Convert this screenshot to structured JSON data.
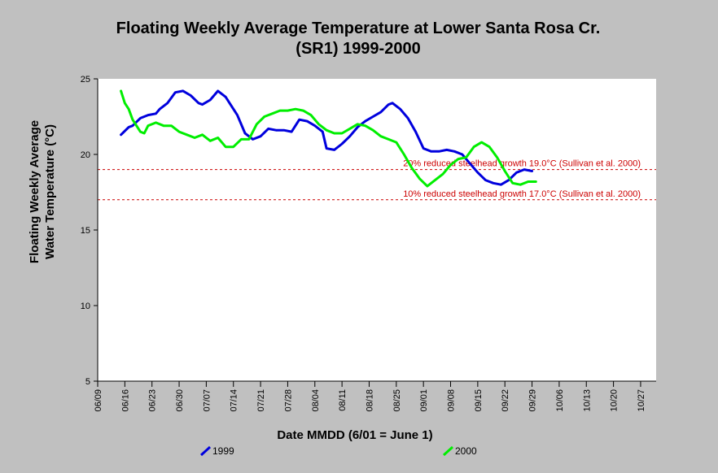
{
  "chart_data": {
    "type": "line",
    "title": "Floating Weekly Average Temperature at Lower Santa Rosa Cr.",
    "subtitle": "(SR1) 1999-2000",
    "xlabel": "Date MMDD (6/01 = June 1)",
    "ylabel_line1": "Floating Weekly Average",
    "ylabel_line2": "Water Temperature (°C)",
    "ylim": [
      5,
      25
    ],
    "yticks": [
      "5",
      "10",
      "15",
      "20",
      "25"
    ],
    "xlim": [
      "06/09",
      "10/31"
    ],
    "xticks": [
      "06/09",
      "06/16",
      "06/23",
      "06/30",
      "07/07",
      "07/14",
      "07/21",
      "07/28",
      "08/04",
      "08/11",
      "08/18",
      "08/25",
      "09/01",
      "09/08",
      "09/15",
      "09/22",
      "09/29",
      "10/06",
      "10/13",
      "10/20",
      "10/27"
    ],
    "grid": false,
    "legend_position": "bottom",
    "reference_lines": [
      {
        "value": 19.0,
        "label": "20% reduced steelhead growth 19.0°C (Sullivan et al. 2000)",
        "color": "#cc0000"
      },
      {
        "value": 17.0,
        "label": "10% reduced steelhead growth 17.0°C (Sullivan et al. 2000)",
        "color": "#cc0000"
      }
    ],
    "series": [
      {
        "name": "1999",
        "color": "#0000dd",
        "x": [
          "06/15",
          "06/17",
          "06/18",
          "06/20",
          "06/22",
          "06/24",
          "06/25",
          "06/27",
          "06/29",
          "07/01",
          "07/03",
          "07/05",
          "07/06",
          "07/08",
          "07/10",
          "07/12",
          "07/13",
          "07/15",
          "07/17",
          "07/19",
          "07/21",
          "07/23",
          "07/25",
          "07/27",
          "07/29",
          "07/31",
          "08/02",
          "08/04",
          "08/06",
          "08/07",
          "08/09",
          "08/11",
          "08/13",
          "08/15",
          "08/17",
          "08/19",
          "08/21",
          "08/23",
          "08/24",
          "08/26",
          "08/28",
          "08/30",
          "09/01",
          "09/03",
          "09/05",
          "09/07",
          "09/09",
          "09/11",
          "09/13",
          "09/15",
          "09/17",
          "09/19",
          "09/21",
          "09/23",
          "09/25",
          "09/27",
          "09/29"
        ],
        "y": [
          21.3,
          21.8,
          21.9,
          22.4,
          22.6,
          22.7,
          23.0,
          23.4,
          24.1,
          24.2,
          23.9,
          23.4,
          23.3,
          23.6,
          24.2,
          23.8,
          23.4,
          22.6,
          21.4,
          21.0,
          21.2,
          21.7,
          21.6,
          21.6,
          21.5,
          22.3,
          22.2,
          21.9,
          21.5,
          20.4,
          20.3,
          20.7,
          21.2,
          21.8,
          22.2,
          22.5,
          22.8,
          23.3,
          23.4,
          23.0,
          22.4,
          21.5,
          20.4,
          20.2,
          20.2,
          20.3,
          20.2,
          20.0,
          19.4,
          18.8,
          18.3,
          18.1,
          18.0,
          18.3,
          18.8,
          19.0,
          18.9
        ]
      },
      {
        "name": "2000",
        "color": "#00ee00",
        "x": [
          "06/15",
          "06/16",
          "06/17",
          "06/18",
          "06/20",
          "06/21",
          "06/22",
          "06/24",
          "06/26",
          "06/28",
          "06/30",
          "07/02",
          "07/04",
          "07/06",
          "07/08",
          "07/10",
          "07/12",
          "07/14",
          "07/16",
          "07/18",
          "07/20",
          "07/22",
          "07/24",
          "07/26",
          "07/28",
          "07/30",
          "08/01",
          "08/03",
          "08/05",
          "08/07",
          "08/09",
          "08/11",
          "08/13",
          "08/15",
          "08/17",
          "08/19",
          "08/21",
          "08/23",
          "08/25",
          "08/27",
          "08/29",
          "08/31",
          "09/02",
          "09/04",
          "09/06",
          "09/08",
          "09/10",
          "09/12",
          "09/14",
          "09/16",
          "09/18",
          "09/20",
          "09/22",
          "09/24",
          "09/26",
          "09/28",
          "09/30"
        ],
        "y": [
          24.2,
          23.4,
          23.0,
          22.3,
          21.5,
          21.4,
          21.9,
          22.1,
          21.9,
          21.9,
          21.5,
          21.3,
          21.1,
          21.3,
          20.9,
          21.1,
          20.5,
          20.5,
          21.0,
          21.0,
          22.0,
          22.5,
          22.7,
          22.9,
          22.9,
          23.0,
          22.9,
          22.6,
          22.0,
          21.6,
          21.4,
          21.4,
          21.7,
          22.0,
          21.9,
          21.6,
          21.2,
          21.0,
          20.8,
          20.0,
          19.1,
          18.4,
          17.9,
          18.3,
          18.7,
          19.3,
          19.7,
          19.8,
          20.5,
          20.8,
          20.5,
          19.8,
          18.9,
          18.1,
          18.0,
          18.2,
          18.2
        ]
      }
    ]
  }
}
